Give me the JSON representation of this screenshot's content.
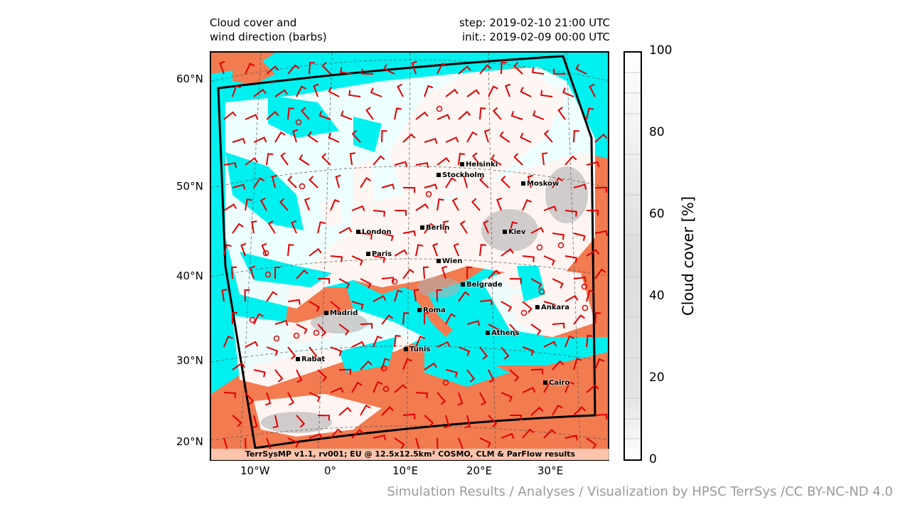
{
  "title_left": "Cloud cover and\nwind direction (barbs)",
  "title_right": "step: 2019-02-10 21:00 UTC\ninit.: 2019-02-09 00:00 UTC",
  "lat_labels": [
    "60°N",
    "50°N",
    "40°N",
    "30°N",
    "20°N"
  ],
  "lon_labels": [
    "10°W",
    "0°",
    "10°E",
    "20°E",
    "30°E"
  ],
  "colorbar": {
    "label": "Cloud cover [%]",
    "ticks": [
      "100",
      "80",
      "60",
      "40",
      "20",
      "0"
    ]
  },
  "bottom_note": "TerrSysMP v1.1, rv001; EU @ 12.5x12.5km² COSMO, CLM & ParFlow results",
  "credit": "Simulation Results / Analyses / Visualization by HPSC TerrSys /CC BY-NC-ND 4.0",
  "colors": {
    "sea": "#00f0f0",
    "land": "#f27b50",
    "barb": "#e00000",
    "frame": "#000000"
  },
  "cities": [
    {
      "name": "Helsinki"
    },
    {
      "name": "Stockholm"
    },
    {
      "name": "Moskow"
    },
    {
      "name": "London"
    },
    {
      "name": "Berlin"
    },
    {
      "name": "Kiev"
    },
    {
      "name": "Paris"
    },
    {
      "name": "Wien"
    },
    {
      "name": "Belgrade"
    },
    {
      "name": "Madrid"
    },
    {
      "name": "Roma"
    },
    {
      "name": "Ankara"
    },
    {
      "name": "Athens"
    },
    {
      "name": "Tunis"
    },
    {
      "name": "Rabat"
    },
    {
      "name": "Cairo"
    }
  ]
}
